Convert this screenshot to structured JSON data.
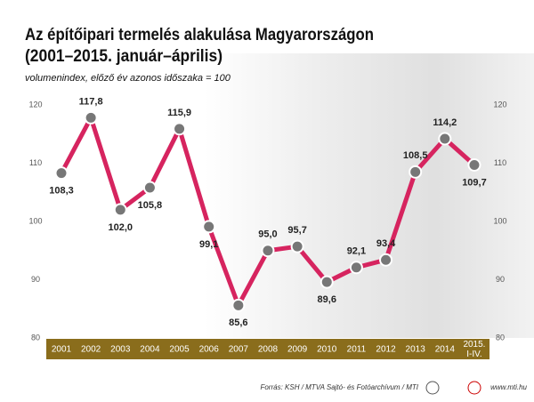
{
  "chart_data": {
    "type": "line",
    "title": "Az építőipari termelés alakulása Magyarországon",
    "period": "(2001–2015. január–április)",
    "unit_note": "volumenindex, előző év azonos időszaka = 100",
    "categories": [
      "2001",
      "2002",
      "2003",
      "2004",
      "2005",
      "2006",
      "2007",
      "2008",
      "2009",
      "2010",
      "2011",
      "2012",
      "2013",
      "2014",
      "2015. I-IV."
    ],
    "series": [
      {
        "name": "volumenindex",
        "color": "#d6245f",
        "values": [
          108.3,
          117.8,
          102.0,
          105.8,
          115.9,
          99.1,
          85.6,
          95.0,
          95.7,
          89.6,
          92.1,
          93.4,
          108.5,
          114.2,
          109.7
        ],
        "value_labels": [
          "108,3",
          "117,8",
          "102,0",
          "105,8",
          "115,9",
          "99,1",
          "85,6",
          "95,0",
          "95,7",
          "89,6",
          "92,1",
          "93,4",
          "108,5",
          "114,2",
          "109,7"
        ]
      }
    ],
    "ylim": [
      80,
      120
    ],
    "yticks": [
      80,
      90,
      100,
      110,
      120
    ],
    "grid": false,
    "source": "Forrás: KSH / MTVA Sajtó- és Fotóarchívum / MTI",
    "website": "www.mti.hu"
  }
}
